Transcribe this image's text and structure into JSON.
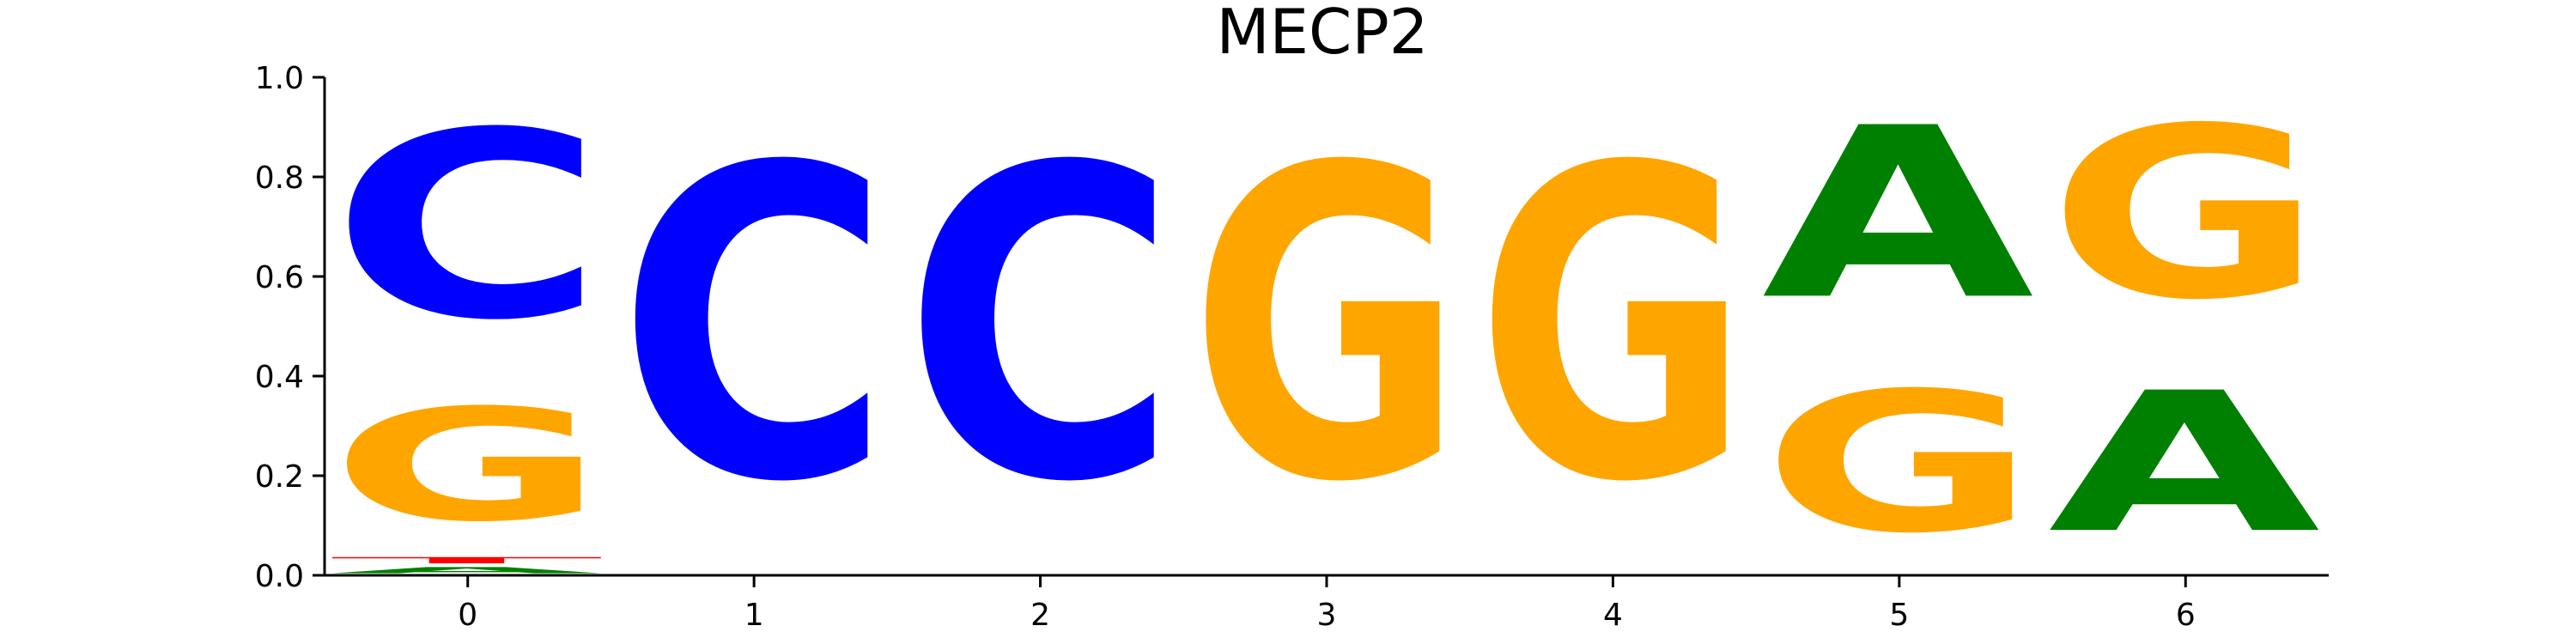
{
  "chart_data": {
    "type": "sequence-logo",
    "title": "MECP2",
    "xlabel": "",
    "ylabel": "",
    "ylim": [
      0,
      1.0
    ],
    "xlim": [
      -0.5,
      6.5
    ],
    "x_ticks": [
      "0",
      "1",
      "2",
      "3",
      "4",
      "5",
      "6"
    ],
    "y_ticks": [
      "0.0",
      "0.2",
      "0.4",
      "0.6",
      "0.8",
      "1.0"
    ],
    "colors": {
      "A": "#008000",
      "C": "#0000ff",
      "G": "#ffa500",
      "T": "#ff0000"
    },
    "positions": [
      {
        "x": 0,
        "letters": [
          {
            "base": "A",
            "value": 0.02
          },
          {
            "base": "T",
            "value": 0.02
          },
          {
            "base": "G",
            "value": 0.36
          },
          {
            "base": "C",
            "value": 0.6
          }
        ]
      },
      {
        "x": 1,
        "letters": [
          {
            "base": "C",
            "value": 1.0
          }
        ]
      },
      {
        "x": 2,
        "letters": [
          {
            "base": "C",
            "value": 1.0
          }
        ]
      },
      {
        "x": 3,
        "letters": [
          {
            "base": "G",
            "value": 1.0
          }
        ]
      },
      {
        "x": 4,
        "letters": [
          {
            "base": "G",
            "value": 1.0
          }
        ]
      },
      {
        "x": 5,
        "letters": [
          {
            "base": "G",
            "value": 0.45
          },
          {
            "base": "A",
            "value": 0.55
          }
        ]
      },
      {
        "x": 6,
        "letters": [
          {
            "base": "A",
            "value": 0.45
          },
          {
            "base": "G",
            "value": 0.55
          }
        ]
      }
    ]
  }
}
